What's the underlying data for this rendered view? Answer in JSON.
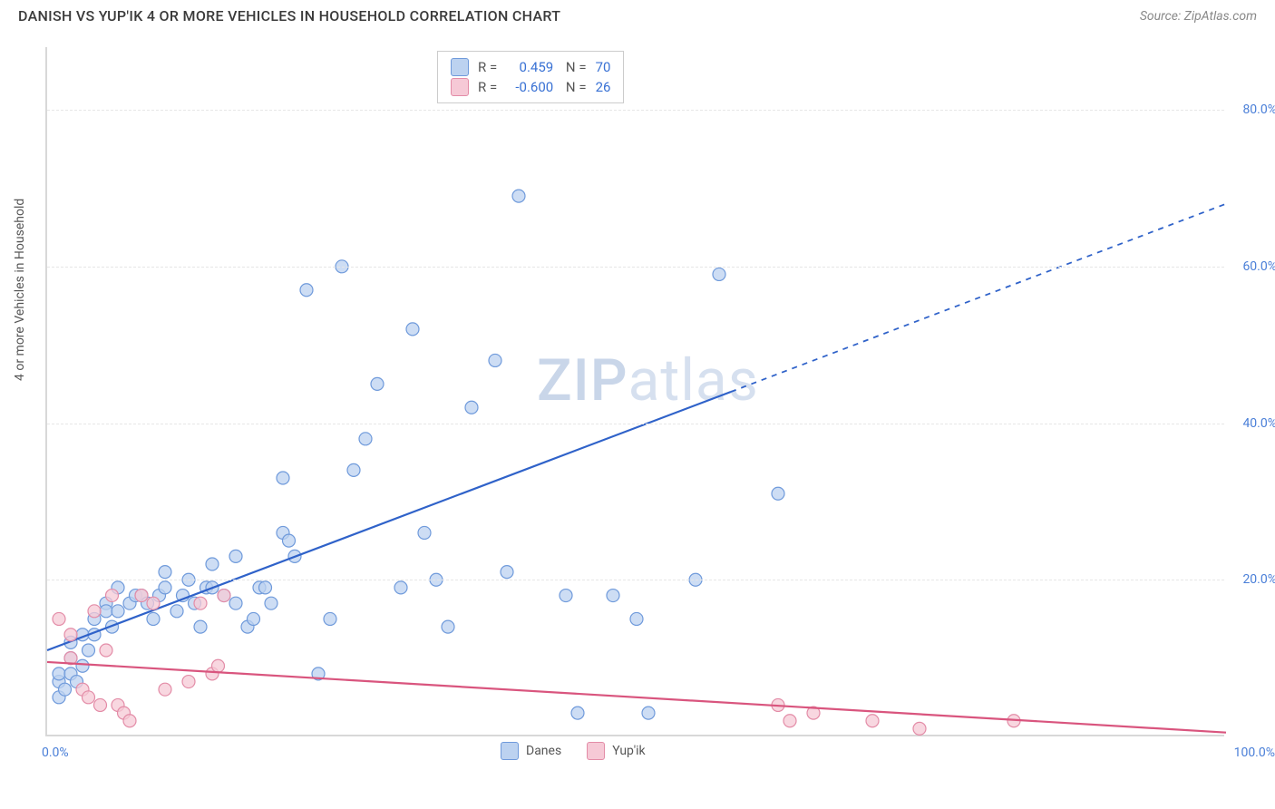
{
  "header": {
    "title": "DANISH VS YUP'IK 4 OR MORE VEHICLES IN HOUSEHOLD CORRELATION CHART",
    "source": "Source: ZipAtlas.com"
  },
  "chart": {
    "ylabel": "4 or more Vehicles in Household",
    "xlim": [
      0,
      100
    ],
    "ylim": [
      0,
      88
    ],
    "yticks": [
      20,
      40,
      60,
      80
    ],
    "ytick_labels": [
      "20.0%",
      "40.0%",
      "60.0%",
      "80.0%"
    ],
    "xtick_left": "0.0%",
    "xtick_right": "100.0%",
    "grid_color": "#e6e6e6",
    "axis_color": "#d8d8d8",
    "background": "#ffffff",
    "watermark": "ZIPatlas",
    "series": [
      {
        "name": "Danes",
        "color_fill": "#bcd2f0",
        "color_stroke": "#6f9adb",
        "swatch_border": "#6f9adb",
        "marker_r": 7,
        "correlation": {
          "r": "0.459",
          "n": "70"
        },
        "trend": {
          "x1": 0,
          "y1": 11,
          "x2_solid": 58,
          "y2_solid": 44,
          "x2": 100,
          "y2": 68,
          "stroke": "#2f62c9",
          "width": 2.2
        },
        "points": [
          [
            1,
            7
          ],
          [
            1,
            8
          ],
          [
            1,
            5
          ],
          [
            1.5,
            6
          ],
          [
            2,
            8
          ],
          [
            2,
            10
          ],
          [
            2.5,
            7
          ],
          [
            2,
            12
          ],
          [
            3,
            9
          ],
          [
            3,
            13
          ],
          [
            3.5,
            11
          ],
          [
            4,
            15
          ],
          [
            4,
            13
          ],
          [
            5,
            17
          ],
          [
            5,
            16
          ],
          [
            5.5,
            14
          ],
          [
            6,
            19
          ],
          [
            6,
            16
          ],
          [
            7,
            17
          ],
          [
            7.5,
            18
          ],
          [
            8,
            18
          ],
          [
            8.5,
            17
          ],
          [
            9,
            15
          ],
          [
            9.5,
            18
          ],
          [
            10,
            21
          ],
          [
            10,
            19
          ],
          [
            11,
            16
          ],
          [
            11.5,
            18
          ],
          [
            12,
            20
          ],
          [
            12.5,
            17
          ],
          [
            13,
            14
          ],
          [
            13.5,
            19
          ],
          [
            14,
            19
          ],
          [
            14,
            22
          ],
          [
            15,
            18
          ],
          [
            16,
            17
          ],
          [
            16,
            23
          ],
          [
            17,
            14
          ],
          [
            17.5,
            15
          ],
          [
            18,
            19
          ],
          [
            18.5,
            19
          ],
          [
            19,
            17
          ],
          [
            20,
            26
          ],
          [
            20.5,
            25
          ],
          [
            21,
            23
          ],
          [
            22,
            57
          ],
          [
            20,
            33
          ],
          [
            23,
            8
          ],
          [
            24,
            15
          ],
          [
            25,
            60
          ],
          [
            26,
            34
          ],
          [
            27,
            38
          ],
          [
            28,
            45
          ],
          [
            30,
            19
          ],
          [
            31,
            52
          ],
          [
            32,
            26
          ],
          [
            33,
            20
          ],
          [
            34,
            14
          ],
          [
            36,
            42
          ],
          [
            38,
            48
          ],
          [
            39,
            21
          ],
          [
            40,
            69
          ],
          [
            44,
            18
          ],
          [
            45,
            3
          ],
          [
            48,
            18
          ],
          [
            50,
            15
          ],
          [
            57,
            59
          ],
          [
            55,
            20
          ],
          [
            62,
            31
          ],
          [
            51,
            3
          ]
        ]
      },
      {
        "name": "Yup'ik",
        "color_fill": "#f6c9d6",
        "color_stroke": "#e38ca7",
        "swatch_border": "#e38ca7",
        "marker_r": 7,
        "correlation": {
          "r": "-0.600",
          "n": "26"
        },
        "trend": {
          "x1": 0,
          "y1": 9.5,
          "x2_solid": 100,
          "y2_solid": 0.5,
          "x2": 100,
          "y2": 0.5,
          "stroke": "#d9557e",
          "width": 2.2
        },
        "points": [
          [
            1,
            15
          ],
          [
            2,
            13
          ],
          [
            2,
            10
          ],
          [
            3,
            6
          ],
          [
            3.5,
            5
          ],
          [
            4,
            16
          ],
          [
            4.5,
            4
          ],
          [
            5,
            11
          ],
          [
            5.5,
            18
          ],
          [
            6,
            4
          ],
          [
            6.5,
            3
          ],
          [
            7,
            2
          ],
          [
            8,
            18
          ],
          [
            9,
            17
          ],
          [
            10,
            6
          ],
          [
            12,
            7
          ],
          [
            13,
            17
          ],
          [
            14,
            8
          ],
          [
            14.5,
            9
          ],
          [
            15,
            18
          ],
          [
            62,
            4
          ],
          [
            63,
            2
          ],
          [
            65,
            3
          ],
          [
            70,
            2
          ],
          [
            74,
            1
          ],
          [
            82,
            2
          ]
        ]
      }
    ],
    "bottom_legend": [
      {
        "label": "Danes",
        "fill": "#bcd2f0",
        "border": "#6f9adb"
      },
      {
        "label": "Yup'ik",
        "fill": "#f6c9d6",
        "border": "#e38ca7"
      }
    ]
  }
}
